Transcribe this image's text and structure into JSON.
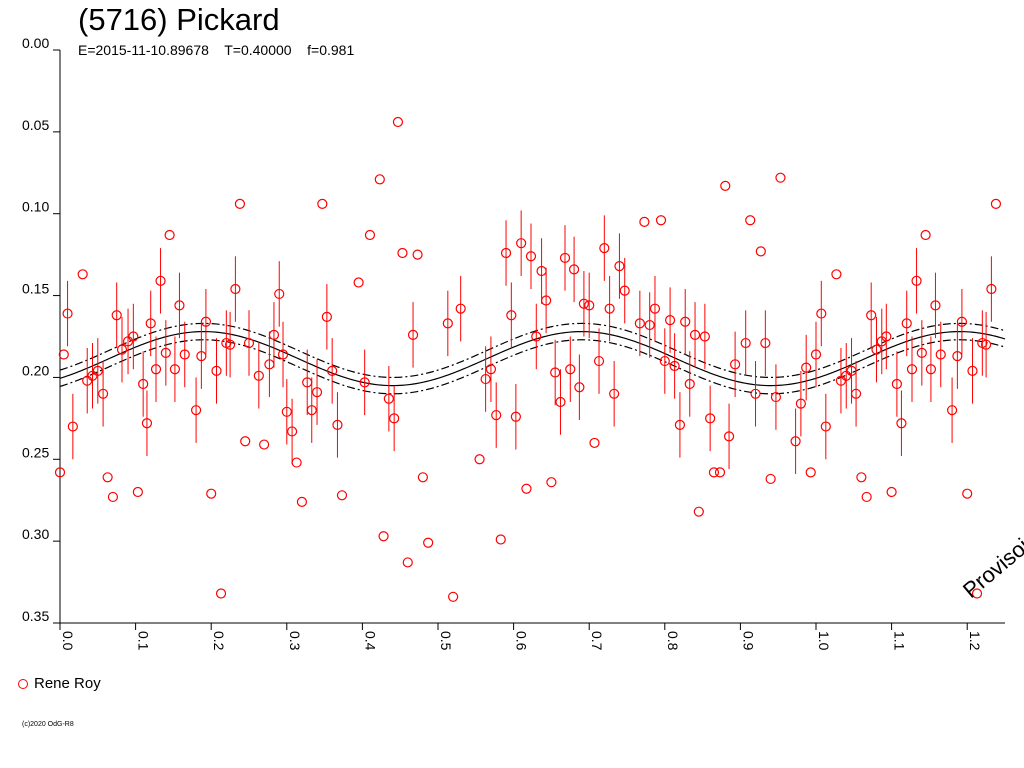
{
  "title": "(5716) Pickard",
  "params": {
    "epoch": "E=2015-11-10.89678",
    "period": "T=0.40000",
    "f": "f=0.981"
  },
  "watermark": "Provisoire",
  "legend": {
    "label": "Rene Roy"
  },
  "copyright": "(c)2020 OdG-R8",
  "colors": {
    "data": "#ff0000",
    "curve": "#000000",
    "background": "#ffffff"
  },
  "chart_data": {
    "type": "scatter",
    "title": "(5716) Pickard",
    "xlabel": "",
    "ylabel": "",
    "xlim": [
      0.0,
      1.25
    ],
    "ylim": [
      0.0,
      0.35
    ],
    "y_inverted": true,
    "x_ticks": [
      "0.0",
      "0.1",
      "0.2",
      "0.3",
      "0.4",
      "0.5",
      "0.6",
      "0.7",
      "0.8",
      "0.9",
      "1.0",
      "1.1",
      "1.2"
    ],
    "y_ticks": [
      "0.00",
      "0.05",
      "0.10",
      "0.15",
      "0.20",
      "0.25",
      "0.30",
      "0.35"
    ],
    "fit_curve": {
      "mean": 0.1885,
      "amplitude": 0.0165,
      "offset_band": 0.005,
      "min_phase": 0.19,
      "period_phase": 1.0
    },
    "series": [
      {
        "name": "Rene Roy",
        "points": [
          {
            "x": 0.0,
            "y": 0.258
          },
          {
            "x": 0.005,
            "y": 0.186
          },
          {
            "x": 0.01,
            "y": 0.161,
            "err": 0.02
          },
          {
            "x": 0.017,
            "y": 0.23,
            "err": 0.02
          },
          {
            "x": 0.03,
            "y": 0.137
          },
          {
            "x": 0.036,
            "y": 0.202,
            "err": 0.02
          },
          {
            "x": 0.043,
            "y": 0.199,
            "err": 0.02
          },
          {
            "x": 0.05,
            "y": 0.196,
            "err": 0.02
          },
          {
            "x": 0.057,
            "y": 0.21,
            "err": 0.02
          },
          {
            "x": 0.063,
            "y": 0.261
          },
          {
            "x": 0.07,
            "y": 0.273
          },
          {
            "x": 0.075,
            "y": 0.162,
            "err": 0.02
          },
          {
            "x": 0.082,
            "y": 0.183,
            "err": 0.02
          },
          {
            "x": 0.09,
            "y": 0.178,
            "err": 0.02
          },
          {
            "x": 0.097,
            "y": 0.175,
            "err": 0.02
          },
          {
            "x": 0.103,
            "y": 0.27
          },
          {
            "x": 0.11,
            "y": 0.204,
            "err": 0.02
          },
          {
            "x": 0.115,
            "y": 0.228,
            "err": 0.02
          },
          {
            "x": 0.12,
            "y": 0.167,
            "err": 0.02
          },
          {
            "x": 0.127,
            "y": 0.195,
            "err": 0.02
          },
          {
            "x": 0.133,
            "y": 0.141,
            "err": 0.02
          },
          {
            "x": 0.14,
            "y": 0.185,
            "err": 0.02
          },
          {
            "x": 0.145,
            "y": 0.113
          },
          {
            "x": 0.152,
            "y": 0.195,
            "err": 0.02
          },
          {
            "x": 0.158,
            "y": 0.156,
            "err": 0.02
          },
          {
            "x": 0.165,
            "y": 0.186,
            "err": 0.02
          },
          {
            "x": 0.18,
            "y": 0.22,
            "err": 0.02
          },
          {
            "x": 0.187,
            "y": 0.187,
            "err": 0.02
          },
          {
            "x": 0.193,
            "y": 0.166,
            "err": 0.02
          },
          {
            "x": 0.2,
            "y": 0.271
          },
          {
            "x": 0.207,
            "y": 0.196,
            "err": 0.02
          },
          {
            "x": 0.213,
            "y": 0.332
          },
          {
            "x": 0.22,
            "y": 0.179,
            "err": 0.02
          },
          {
            "x": 0.225,
            "y": 0.18,
            "err": 0.02
          },
          {
            "x": 0.232,
            "y": 0.146,
            "err": 0.02
          },
          {
            "x": 0.238,
            "y": 0.094
          },
          {
            "x": 0.245,
            "y": 0.239
          },
          {
            "x": 0.25,
            "y": 0.179,
            "err": 0.02
          },
          {
            "x": 0.263,
            "y": 0.199,
            "err": 0.02
          },
          {
            "x": 0.27,
            "y": 0.241
          },
          {
            "x": 0.277,
            "y": 0.192,
            "err": 0.02
          },
          {
            "x": 0.283,
            "y": 0.174,
            "err": 0.02
          },
          {
            "x": 0.29,
            "y": 0.149,
            "err": 0.02
          },
          {
            "x": 0.295,
            "y": 0.186,
            "err": 0.02
          },
          {
            "x": 0.3,
            "y": 0.221,
            "err": 0.02
          },
          {
            "x": 0.307,
            "y": 0.233,
            "err": 0.02
          },
          {
            "x": 0.313,
            "y": 0.252
          },
          {
            "x": 0.32,
            "y": 0.276
          },
          {
            "x": 0.327,
            "y": 0.203,
            "err": 0.02
          },
          {
            "x": 0.333,
            "y": 0.22,
            "err": 0.02
          },
          {
            "x": 0.34,
            "y": 0.209,
            "err": 0.02
          },
          {
            "x": 0.347,
            "y": 0.094
          },
          {
            "x": 0.353,
            "y": 0.163,
            "err": 0.02
          },
          {
            "x": 0.36,
            "y": 0.196,
            "err": 0.02
          },
          {
            "x": 0.367,
            "y": 0.229,
            "err": 0.02
          },
          {
            "x": 0.373,
            "y": 0.272
          },
          {
            "x": 0.395,
            "y": 0.142
          },
          {
            "x": 0.403,
            "y": 0.203,
            "err": 0.02
          },
          {
            "x": 0.41,
            "y": 0.113
          },
          {
            "x": 0.423,
            "y": 0.079
          },
          {
            "x": 0.428,
            "y": 0.297
          },
          {
            "x": 0.435,
            "y": 0.213,
            "err": 0.02
          },
          {
            "x": 0.442,
            "y": 0.225,
            "err": 0.02
          },
          {
            "x": 0.447,
            "y": 0.044
          },
          {
            "x": 0.453,
            "y": 0.124
          },
          {
            "x": 0.46,
            "y": 0.313
          },
          {
            "x": 0.467,
            "y": 0.174,
            "err": 0.02
          },
          {
            "x": 0.473,
            "y": 0.125
          },
          {
            "x": 0.48,
            "y": 0.261
          },
          {
            "x": 0.487,
            "y": 0.301
          },
          {
            "x": 0.513,
            "y": 0.167,
            "err": 0.02
          },
          {
            "x": 0.52,
            "y": 0.334
          },
          {
            "x": 0.53,
            "y": 0.158,
            "err": 0.02
          },
          {
            "x": 0.555,
            "y": 0.25
          },
          {
            "x": 0.563,
            "y": 0.201,
            "err": 0.02
          },
          {
            "x": 0.57,
            "y": 0.195,
            "err": 0.02
          },
          {
            "x": 0.577,
            "y": 0.223,
            "err": 0.02
          },
          {
            "x": 0.583,
            "y": 0.299
          },
          {
            "x": 0.59,
            "y": 0.124,
            "err": 0.02
          },
          {
            "x": 0.597,
            "y": 0.162,
            "err": 0.02
          },
          {
            "x": 0.603,
            "y": 0.224,
            "err": 0.02
          },
          {
            "x": 0.61,
            "y": 0.118,
            "err": 0.02
          },
          {
            "x": 0.617,
            "y": 0.268
          },
          {
            "x": 0.623,
            "y": 0.126,
            "err": 0.02
          },
          {
            "x": 0.63,
            "y": 0.175,
            "err": 0.02
          },
          {
            "x": 0.637,
            "y": 0.135,
            "err": 0.02
          },
          {
            "x": 0.643,
            "y": 0.153,
            "err": 0.02
          },
          {
            "x": 0.65,
            "y": 0.264
          },
          {
            "x": 0.655,
            "y": 0.197,
            "err": 0.02
          },
          {
            "x": 0.662,
            "y": 0.215,
            "err": 0.02
          },
          {
            "x": 0.668,
            "y": 0.127,
            "err": 0.02
          },
          {
            "x": 0.675,
            "y": 0.195,
            "err": 0.02
          },
          {
            "x": 0.68,
            "y": 0.134,
            "err": 0.02
          },
          {
            "x": 0.687,
            "y": 0.206,
            "err": 0.02
          },
          {
            "x": 0.693,
            "y": 0.155,
            "err": 0.02
          },
          {
            "x": 0.7,
            "y": 0.156,
            "err": 0.02
          },
          {
            "x": 0.707,
            "y": 0.24
          },
          {
            "x": 0.713,
            "y": 0.19,
            "err": 0.02
          },
          {
            "x": 0.72,
            "y": 0.121,
            "err": 0.02
          },
          {
            "x": 0.727,
            "y": 0.158,
            "err": 0.02
          },
          {
            "x": 0.733,
            "y": 0.21,
            "err": 0.02
          },
          {
            "x": 0.74,
            "y": 0.132,
            "err": 0.02
          },
          {
            "x": 0.747,
            "y": 0.147,
            "err": 0.02
          },
          {
            "x": 0.767,
            "y": 0.167,
            "err": 0.02
          },
          {
            "x": 0.773,
            "y": 0.105
          },
          {
            "x": 0.78,
            "y": 0.168,
            "err": 0.02
          },
          {
            "x": 0.787,
            "y": 0.158,
            "err": 0.02
          },
          {
            "x": 0.795,
            "y": 0.104
          },
          {
            "x": 0.8,
            "y": 0.19,
            "err": 0.02
          },
          {
            "x": 0.807,
            "y": 0.165,
            "err": 0.02
          },
          {
            "x": 0.813,
            "y": 0.193,
            "err": 0.02
          },
          {
            "x": 0.82,
            "y": 0.229,
            "err": 0.02
          },
          {
            "x": 0.827,
            "y": 0.166,
            "err": 0.02
          },
          {
            "x": 0.833,
            "y": 0.204,
            "err": 0.02
          },
          {
            "x": 0.84,
            "y": 0.174,
            "err": 0.02
          },
          {
            "x": 0.845,
            "y": 0.282
          },
          {
            "x": 0.853,
            "y": 0.175,
            "err": 0.02
          },
          {
            "x": 0.86,
            "y": 0.225,
            "err": 0.02
          },
          {
            "x": 0.865,
            "y": 0.258
          },
          {
            "x": 0.873,
            "y": 0.258
          },
          {
            "x": 0.88,
            "y": 0.083
          },
          {
            "x": 0.885,
            "y": 0.236,
            "err": 0.02
          },
          {
            "x": 0.893,
            "y": 0.192,
            "err": 0.02
          },
          {
            "x": 0.907,
            "y": 0.179,
            "err": 0.02
          },
          {
            "x": 0.913,
            "y": 0.104
          },
          {
            "x": 0.92,
            "y": 0.21,
            "err": 0.02
          },
          {
            "x": 0.927,
            "y": 0.123
          },
          {
            "x": 0.933,
            "y": 0.179,
            "err": 0.02
          },
          {
            "x": 0.94,
            "y": 0.262
          },
          {
            "x": 0.947,
            "y": 0.212,
            "err": 0.02
          },
          {
            "x": 0.953,
            "y": 0.078
          },
          {
            "x": 0.973,
            "y": 0.239,
            "err": 0.02
          },
          {
            "x": 0.98,
            "y": 0.216,
            "err": 0.02
          },
          {
            "x": 0.987,
            "y": 0.194,
            "err": 0.02
          },
          {
            "x": 0.993,
            "y": 0.258
          },
          {
            "x": 1.0,
            "y": 0.186,
            "err": 0.02
          },
          {
            "x": 1.007,
            "y": 0.161,
            "err": 0.02
          },
          {
            "x": 1.013,
            "y": 0.23,
            "err": 0.02
          },
          {
            "x": 1.027,
            "y": 0.137
          },
          {
            "x": 1.033,
            "y": 0.202,
            "err": 0.02
          },
          {
            "x": 1.04,
            "y": 0.199,
            "err": 0.02
          },
          {
            "x": 1.047,
            "y": 0.196,
            "err": 0.02
          },
          {
            "x": 1.053,
            "y": 0.21,
            "err": 0.02
          },
          {
            "x": 1.06,
            "y": 0.261
          },
          {
            "x": 1.067,
            "y": 0.273
          },
          {
            "x": 1.073,
            "y": 0.162,
            "err": 0.02
          },
          {
            "x": 1.08,
            "y": 0.183,
            "err": 0.02
          },
          {
            "x": 1.087,
            "y": 0.178,
            "err": 0.02
          },
          {
            "x": 1.093,
            "y": 0.175,
            "err": 0.02
          },
          {
            "x": 1.1,
            "y": 0.27
          },
          {
            "x": 1.107,
            "y": 0.204,
            "err": 0.02
          },
          {
            "x": 1.113,
            "y": 0.228,
            "err": 0.02
          },
          {
            "x": 1.12,
            "y": 0.167,
            "err": 0.02
          },
          {
            "x": 1.127,
            "y": 0.195,
            "err": 0.02
          },
          {
            "x": 1.133,
            "y": 0.141,
            "err": 0.02
          },
          {
            "x": 1.14,
            "y": 0.185,
            "err": 0.02
          },
          {
            "x": 1.145,
            "y": 0.113
          },
          {
            "x": 1.152,
            "y": 0.195,
            "err": 0.02
          },
          {
            "x": 1.158,
            "y": 0.156,
            "err": 0.02
          },
          {
            "x": 1.165,
            "y": 0.186,
            "err": 0.02
          },
          {
            "x": 1.18,
            "y": 0.22,
            "err": 0.02
          },
          {
            "x": 1.187,
            "y": 0.187,
            "err": 0.02
          },
          {
            "x": 1.193,
            "y": 0.166,
            "err": 0.02
          },
          {
            "x": 1.2,
            "y": 0.271
          },
          {
            "x": 1.207,
            "y": 0.196,
            "err": 0.02
          },
          {
            "x": 1.213,
            "y": 0.332
          },
          {
            "x": 1.22,
            "y": 0.179,
            "err": 0.02
          },
          {
            "x": 1.225,
            "y": 0.18,
            "err": 0.02
          },
          {
            "x": 1.232,
            "y": 0.146,
            "err": 0.02
          },
          {
            "x": 1.238,
            "y": 0.094
          }
        ]
      }
    ]
  }
}
